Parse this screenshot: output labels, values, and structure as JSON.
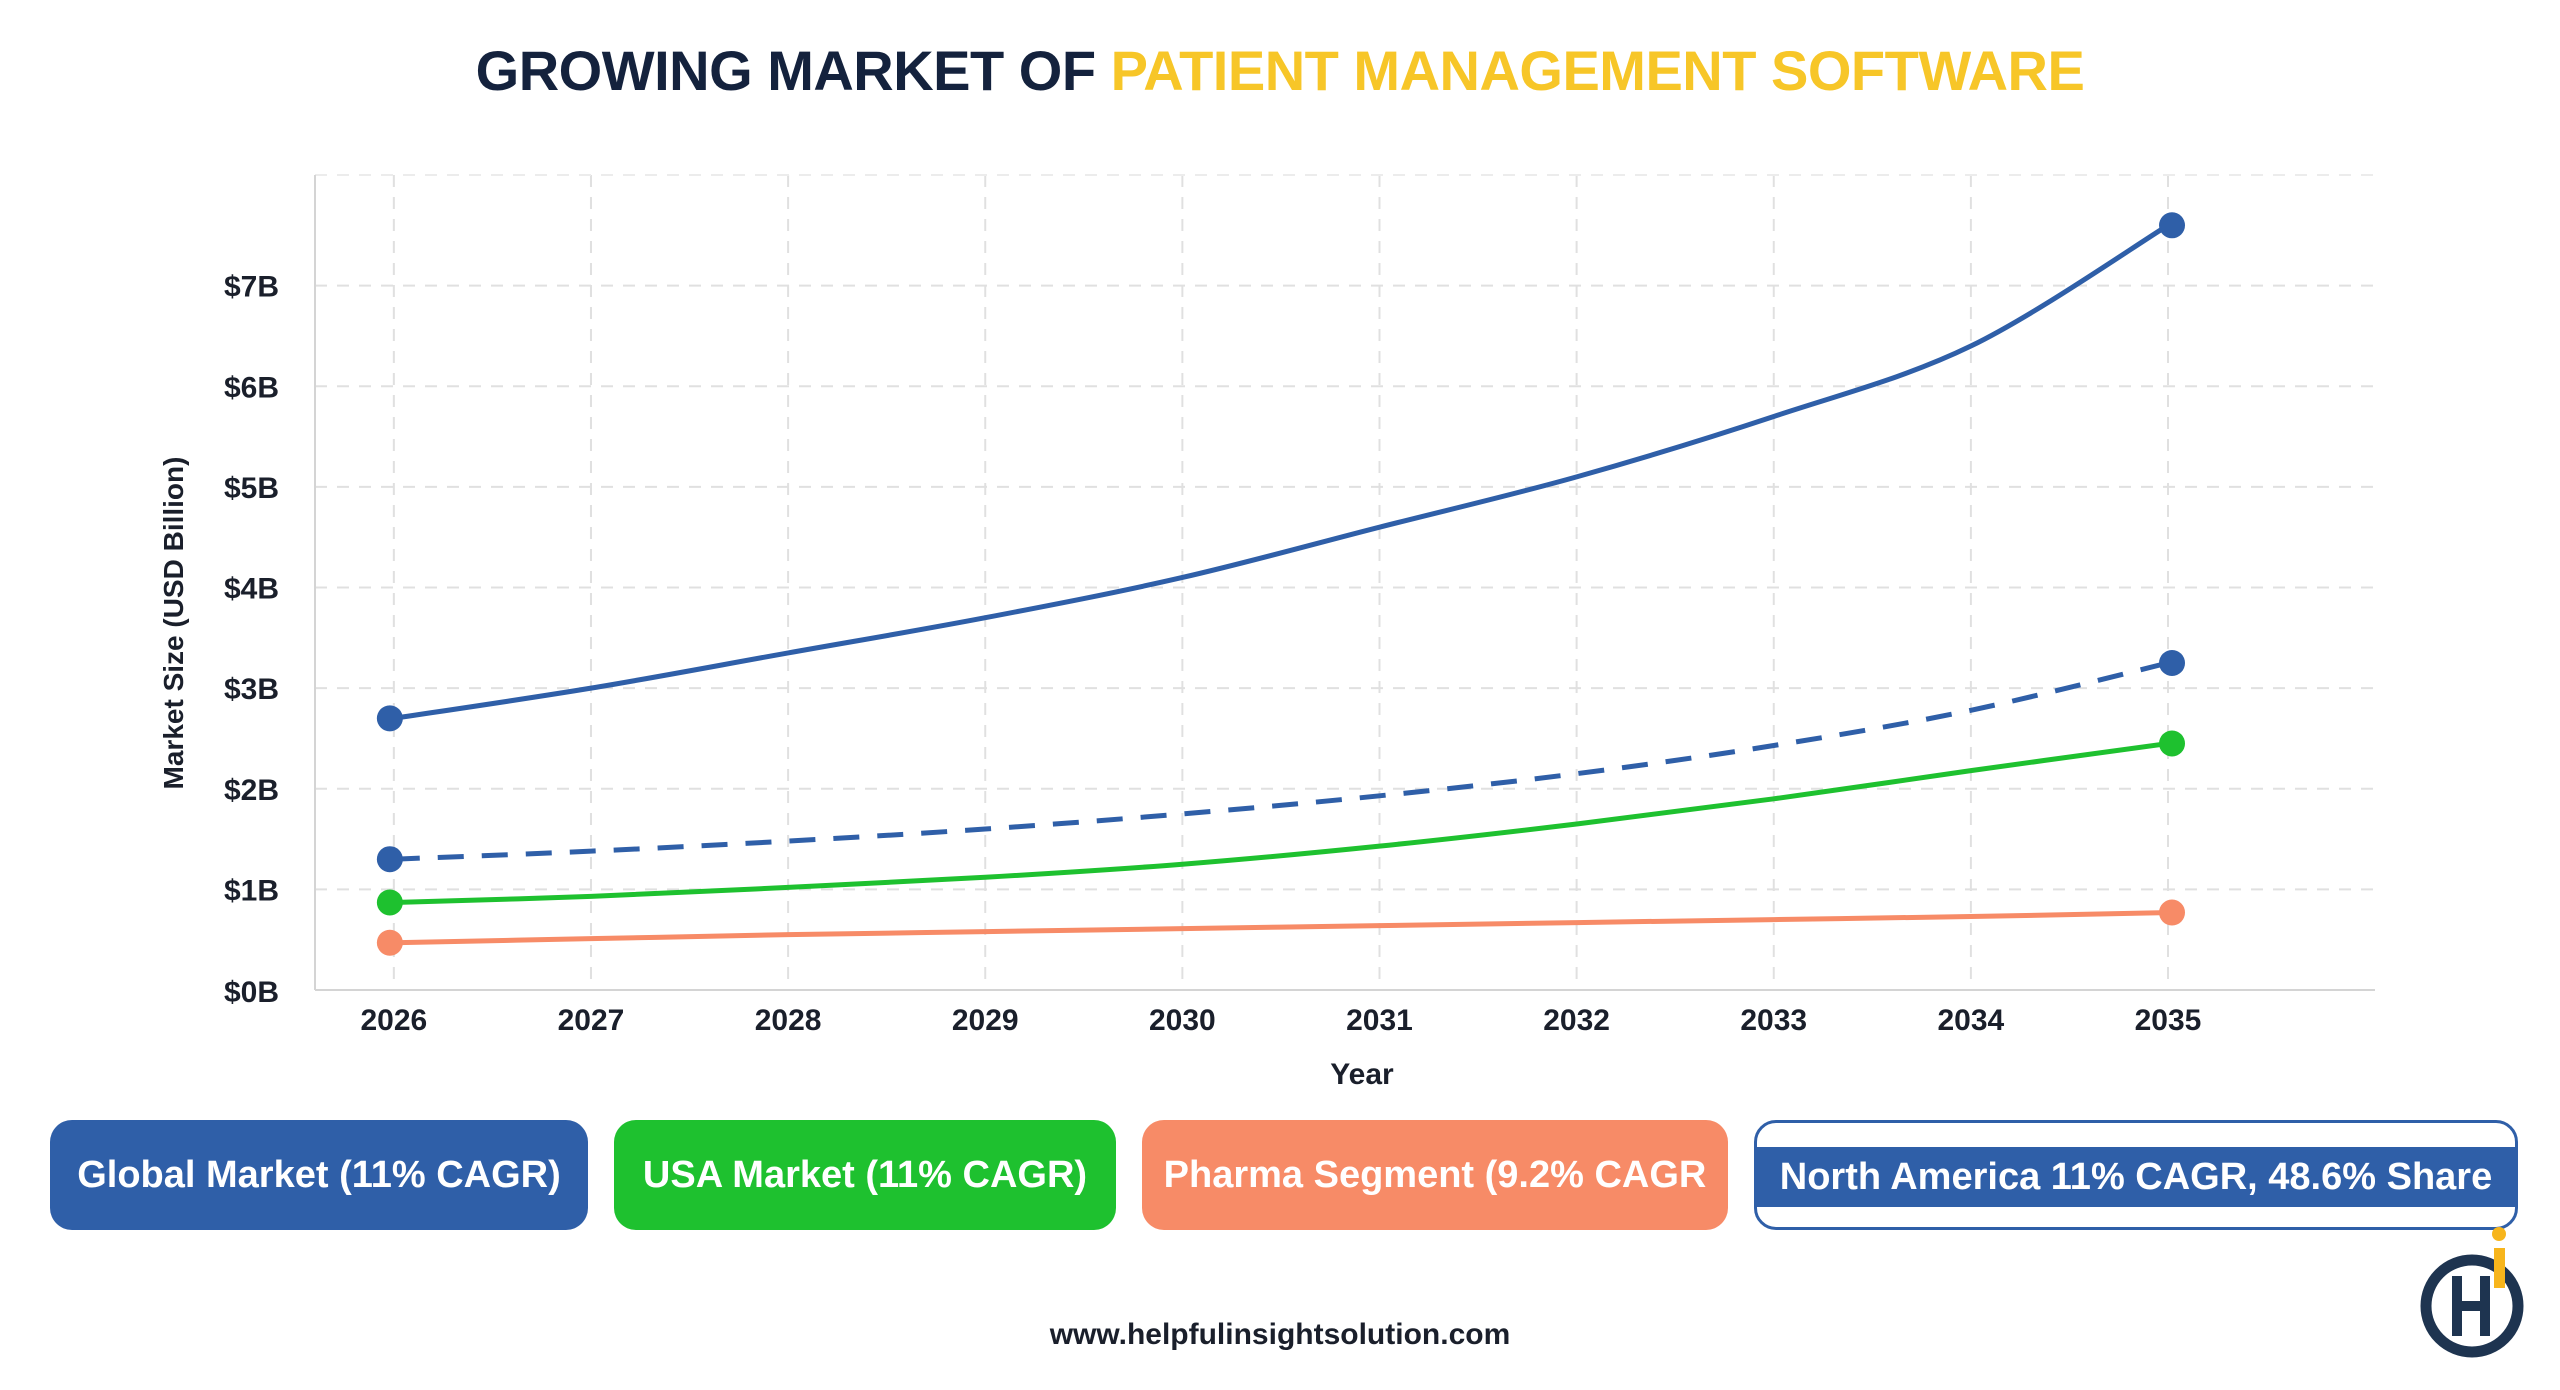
{
  "header": {
    "title_part1": "GROWING MARKET OF",
    "title_part2": "PATIENT MANAGEMENT SOFTWARE"
  },
  "colors": {
    "title_dark": "#14223d",
    "title_accent": "#f7c628",
    "global": "#2f5fa8",
    "usa": "#1ec12f",
    "pharma": "#f78b67",
    "north_america": "#2f5fa8"
  },
  "chart_data": {
    "type": "line",
    "xlabel": "Year",
    "ylabel": "Market Size (USD Billion)",
    "x": [
      2026,
      2027,
      2028,
      2029,
      2030,
      2031,
      2032,
      2033,
      2034,
      2035
    ],
    "x_tick_labels": [
      "2026",
      "2027",
      "2028",
      "2029",
      "2030",
      "2031",
      "2032",
      "2033",
      "2034",
      "2035"
    ],
    "y_tick_values": [
      0,
      1,
      2,
      3,
      4,
      5,
      6,
      7
    ],
    "y_tick_labels": [
      "$0B",
      "$1B",
      "$2B",
      "$3B",
      "$4B",
      "$5B",
      "$6B",
      "$7B"
    ],
    "xlim": [
      2025.6,
      2036.05
    ],
    "ylim": [
      0,
      8.1
    ],
    "grid": true,
    "series": [
      {
        "name": "Global Market (11% CAGR)",
        "color": "#2f5fa8",
        "style": "solid",
        "values": [
          2.7,
          3.0,
          3.35,
          3.7,
          4.1,
          4.6,
          5.1,
          5.7,
          6.4,
          7.6
        ],
        "markers": [
          2026,
          2035
        ]
      },
      {
        "name": "North America 11% CAGR, 48.6% Share",
        "color": "#2f5fa8",
        "style": "dashed",
        "values": [
          1.3,
          1.38,
          1.48,
          1.6,
          1.75,
          1.93,
          2.15,
          2.43,
          2.78,
          3.25
        ],
        "markers": [
          2026,
          2035
        ]
      },
      {
        "name": "USA Market (11% CAGR)",
        "color": "#1ec12f",
        "style": "solid",
        "values": [
          0.87,
          0.93,
          1.02,
          1.12,
          1.25,
          1.43,
          1.65,
          1.9,
          2.18,
          2.45
        ],
        "markers": [
          2026,
          2035
        ]
      },
      {
        "name": "Pharma Segment (9.2% CAGR",
        "color": "#f78b67",
        "style": "solid",
        "values": [
          0.47,
          0.51,
          0.55,
          0.58,
          0.61,
          0.64,
          0.67,
          0.7,
          0.73,
          0.77
        ],
        "markers": [
          2026,
          2035
        ]
      }
    ]
  },
  "legend": {
    "global": "Global Market (11% CAGR)",
    "usa": "USA Market (11% CAGR)",
    "pharma": "Pharma Segment (9.2% CAGR",
    "north_america": "North America 11% CAGR, 48.6% Share"
  },
  "footer": {
    "url": "www.helpfulinsightsolution.com"
  },
  "logo": {
    "icon": "hi-brand-logo",
    "dark": "#1e3450",
    "accent": "#f7b51c"
  }
}
